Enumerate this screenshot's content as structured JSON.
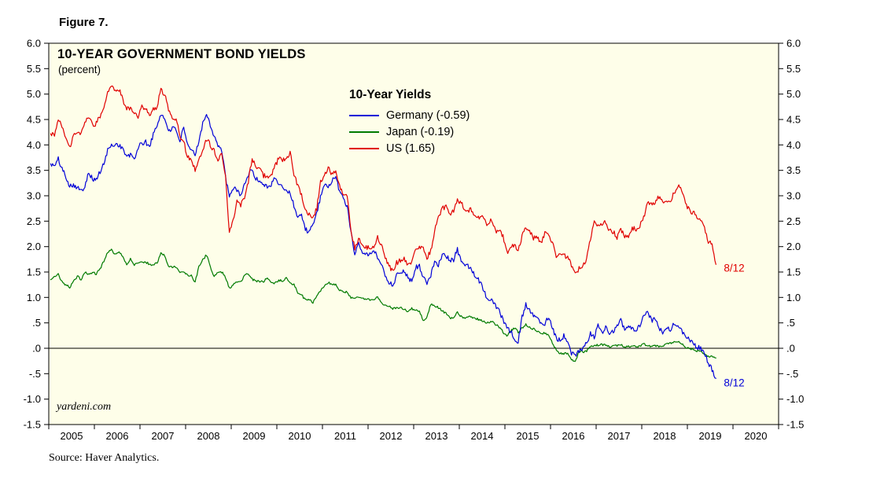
{
  "figure_label": "Figure 7.",
  "source": "Source: Haver Analytics.",
  "chart_data": {
    "type": "line",
    "title": "10-YEAR GOVERNMENT BOND YIELDS",
    "subtitle": "(percent)",
    "legend_title": "10-Year Yields",
    "legend_position": "upper-center-inside",
    "watermark": "yardeni.com",
    "plot_bg": "#FEFEE9",
    "axis_color": "#000000",
    "grid": false,
    "zero_line": 0.0,
    "ylim": [
      -1.5,
      6.0
    ],
    "ytick_step": 0.5,
    "ytick_labels": [
      "6.0",
      "5.5",
      "5.0",
      "4.5",
      "4.0",
      "3.5",
      "3.0",
      "2.5",
      "2.0",
      "1.5",
      "1.0",
      ".5",
      ".0",
      "-.5",
      "-1.0",
      "-1.5"
    ],
    "xlim": [
      2005,
      2021
    ],
    "x_year_labels": [
      "2005",
      "2006",
      "2007",
      "2008",
      "2009",
      "2010",
      "2011",
      "2012",
      "2013",
      "2014",
      "2015",
      "2016",
      "2017",
      "2018",
      "2019",
      "2020"
    ],
    "x_start_year": 2005,
    "points_per_year": 12,
    "annotations": [
      {
        "text": "8/12",
        "color": "#E00000",
        "x": 2019.8,
        "y": 1.58
      },
      {
        "text": "8/12",
        "color": "#0000D8",
        "x": 2019.8,
        "y": -0.68
      }
    ],
    "series": [
      {
        "name": "Germany (-0.59)",
        "color": "#0000D8",
        "last_value": -0.59,
        "values": [
          3.63,
          3.58,
          3.72,
          3.53,
          3.38,
          3.2,
          3.22,
          3.17,
          3.08,
          3.2,
          3.48,
          3.32,
          3.32,
          3.47,
          3.62,
          3.9,
          3.98,
          4.02,
          4.0,
          3.92,
          3.76,
          3.8,
          3.72,
          3.95,
          4.03,
          4.05,
          3.97,
          4.2,
          4.38,
          4.62,
          4.5,
          4.3,
          4.32,
          4.31,
          4.08,
          4.32,
          3.98,
          3.9,
          3.8,
          4.1,
          4.42,
          4.62,
          4.4,
          4.18,
          4.0,
          3.88,
          3.38,
          2.95,
          3.15,
          3.12,
          3.02,
          3.2,
          3.42,
          3.52,
          3.32,
          3.3,
          3.22,
          3.2,
          3.2,
          3.38,
          3.2,
          3.18,
          3.1,
          3.06,
          2.8,
          2.6,
          2.62,
          2.35,
          2.28,
          2.42,
          2.68,
          2.96,
          3.18,
          3.2,
          3.28,
          3.38,
          3.08,
          2.98,
          2.78,
          2.3,
          1.85,
          2.08,
          1.92,
          1.85,
          1.85,
          1.9,
          1.8,
          1.68,
          1.42,
          1.3,
          1.25,
          1.42,
          1.52,
          1.5,
          1.4,
          1.32,
          1.6,
          1.62,
          1.41,
          1.25,
          1.44,
          1.72,
          1.65,
          1.85,
          1.82,
          1.72,
          1.74,
          1.94,
          1.72,
          1.65,
          1.6,
          1.5,
          1.4,
          1.3,
          1.15,
          0.95,
          1.0,
          0.85,
          0.75,
          0.55,
          0.4,
          0.33,
          0.2,
          0.12,
          0.62,
          0.85,
          0.74,
          0.64,
          0.6,
          0.52,
          0.48,
          0.63,
          0.42,
          0.2,
          0.15,
          0.25,
          0.14,
          -0.1,
          -0.12,
          -0.07,
          -0.02,
          0.1,
          0.3,
          0.2,
          0.45,
          0.3,
          0.4,
          0.3,
          0.35,
          0.45,
          0.55,
          0.38,
          0.45,
          0.38,
          0.35,
          0.43,
          0.62,
          0.72,
          0.55,
          0.56,
          0.4,
          0.33,
          0.4,
          0.35,
          0.5,
          0.4,
          0.35,
          0.25,
          0.18,
          0.1,
          0.02,
          0.0,
          -0.1,
          -0.3,
          -0.42,
          -0.59
        ]
      },
      {
        "name": "Japan (-0.19)",
        "color": "#007A00",
        "last_value": -0.19,
        "values": [
          1.35,
          1.4,
          1.45,
          1.3,
          1.25,
          1.2,
          1.3,
          1.42,
          1.35,
          1.5,
          1.46,
          1.5,
          1.46,
          1.56,
          1.72,
          1.9,
          1.93,
          1.85,
          1.9,
          1.8,
          1.65,
          1.76,
          1.64,
          1.68,
          1.7,
          1.7,
          1.65,
          1.64,
          1.68,
          1.88,
          1.83,
          1.6,
          1.6,
          1.6,
          1.48,
          1.5,
          1.44,
          1.44,
          1.3,
          1.6,
          1.74,
          1.84,
          1.6,
          1.42,
          1.5,
          1.5,
          1.4,
          1.18,
          1.25,
          1.3,
          1.3,
          1.44,
          1.46,
          1.36,
          1.32,
          1.32,
          1.3,
          1.4,
          1.3,
          1.28,
          1.34,
          1.32,
          1.38,
          1.3,
          1.25,
          1.1,
          1.05,
          0.95,
          0.96,
          0.88,
          1.05,
          1.13,
          1.21,
          1.3,
          1.25,
          1.26,
          1.15,
          1.12,
          1.1,
          1.0,
          0.99,
          1.0,
          0.98,
          0.98,
          0.95,
          0.97,
          1.0,
          0.9,
          0.85,
          0.82,
          0.78,
          0.8,
          0.8,
          0.77,
          0.71,
          0.78,
          0.76,
          0.72,
          0.55,
          0.6,
          0.86,
          0.84,
          0.8,
          0.74,
          0.68,
          0.6,
          0.6,
          0.71,
          0.62,
          0.6,
          0.62,
          0.6,
          0.58,
          0.56,
          0.53,
          0.5,
          0.53,
          0.47,
          0.42,
          0.32,
          0.25,
          0.34,
          0.4,
          0.32,
          0.4,
          0.46,
          0.42,
          0.38,
          0.34,
          0.3,
          0.3,
          0.27,
          0.1,
          -0.04,
          -0.1,
          -0.1,
          -0.1,
          -0.22,
          -0.28,
          -0.06,
          -0.07,
          -0.05,
          0.02,
          0.05,
          0.06,
          0.07,
          0.07,
          0.02,
          0.04,
          0.05,
          0.08,
          0.02,
          0.03,
          0.06,
          0.03,
          0.05,
          0.08,
          0.06,
          0.04,
          0.05,
          0.04,
          0.04,
          0.09,
          0.1,
          0.12,
          0.13,
          0.1,
          0.01,
          0.0,
          -0.02,
          -0.05,
          -0.05,
          -0.1,
          -0.16,
          -0.15,
          -0.19
        ]
      },
      {
        "name": "US (1.65)",
        "color": "#E00000",
        "last_value": 1.65,
        "values": [
          4.22,
          4.17,
          4.5,
          4.34,
          4.14,
          3.94,
          4.18,
          4.26,
          4.2,
          4.46,
          4.54,
          4.39,
          4.42,
          4.57,
          4.72,
          5.06,
          5.11,
          5.11,
          5.09,
          4.88,
          4.72,
          4.73,
          4.6,
          4.56,
          4.76,
          4.72,
          4.56,
          4.69,
          4.75,
          5.1,
          5.0,
          4.67,
          4.52,
          4.53,
          4.15,
          4.1,
          3.74,
          3.74,
          3.51,
          3.68,
          3.88,
          4.1,
          4.01,
          3.89,
          3.69,
          3.81,
          3.35,
          2.25,
          2.52,
          2.87,
          2.82,
          2.93,
          3.29,
          3.72,
          3.56,
          3.59,
          3.4,
          3.39,
          3.4,
          3.59,
          3.73,
          3.69,
          3.73,
          3.85,
          3.42,
          3.2,
          3.01,
          2.7,
          2.65,
          2.54,
          2.76,
          3.29,
          3.39,
          3.58,
          3.41,
          3.46,
          3.17,
          3.0,
          3.0,
          2.3,
          1.98,
          2.15,
          2.01,
          1.98,
          1.97,
          1.97,
          2.17,
          2.05,
          1.8,
          1.62,
          1.53,
          1.68,
          1.72,
          1.75,
          1.65,
          1.72,
          1.91,
          1.98,
          1.96,
          1.76,
          1.93,
          2.3,
          2.58,
          2.74,
          2.81,
          2.62,
          2.72,
          2.9,
          2.86,
          2.71,
          2.72,
          2.71,
          2.56,
          2.6,
          2.54,
          2.42,
          2.53,
          2.3,
          2.33,
          2.21,
          1.88,
          1.98,
          2.04,
          1.94,
          2.2,
          2.36,
          2.32,
          2.17,
          2.17,
          2.07,
          2.26,
          2.24,
          2.09,
          1.78,
          1.89,
          1.81,
          1.81,
          1.64,
          1.5,
          1.56,
          1.63,
          1.76,
          2.14,
          2.49,
          2.43,
          2.42,
          2.48,
          2.3,
          2.3,
          2.19,
          2.32,
          2.21,
          2.2,
          2.36,
          2.35,
          2.4,
          2.58,
          2.86,
          2.84,
          2.87,
          2.98,
          2.9,
          2.89,
          2.89,
          3.05,
          3.22,
          3.12,
          2.83,
          2.71,
          2.68,
          2.57,
          2.53,
          2.4,
          2.07,
          2.06,
          1.65
        ]
      }
    ]
  }
}
